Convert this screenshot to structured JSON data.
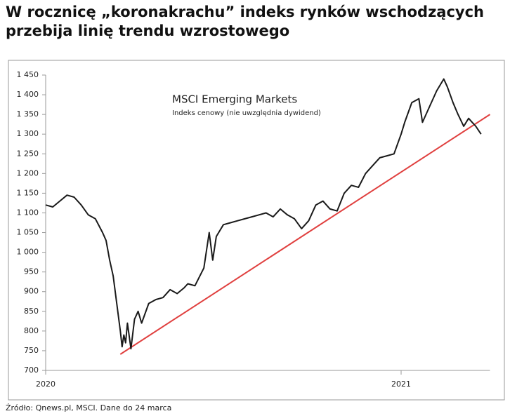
{
  "chart_data": {
    "type": "line",
    "title": "W rocznicę „koronakrachu” indeks rynków wschodzących przebija linię trendu wzrostowego",
    "annotation_title": "MSCI Emerging Markets",
    "annotation_subtitle": "Indeks cenowy (nie uwzględnia dywidend)",
    "source": "Źródło: Qnews.pl, MSCI. Dane do 24 marca",
    "x": [
      2020.0,
      2020.02,
      2020.04,
      2020.06,
      2020.08,
      2020.1,
      2020.12,
      2020.14,
      2020.16,
      2020.17,
      2020.18,
      2020.19,
      2020.2,
      2020.21,
      2020.215,
      2020.22,
      2020.225,
      2020.23,
      2020.24,
      2020.25,
      2020.26,
      2020.27,
      2020.29,
      2020.31,
      2020.33,
      2020.35,
      2020.37,
      2020.39,
      2020.4,
      2020.42,
      2020.445,
      2020.46,
      2020.47,
      2020.48,
      2020.5,
      2020.52,
      2020.54,
      2020.56,
      2020.58,
      2020.6,
      2020.62,
      2020.64,
      2020.66,
      2020.68,
      2020.7,
      2020.72,
      2020.74,
      2020.76,
      2020.78,
      2020.8,
      2020.82,
      2020.84,
      2020.86,
      2020.88,
      2020.9,
      2020.92,
      2020.94,
      2020.96,
      2020.98,
      2021.0,
      2021.01,
      2021.03,
      2021.05,
      2021.06,
      2021.08,
      2021.1,
      2021.12,
      2021.13,
      2021.146,
      2021.16,
      2021.176,
      2021.19,
      2021.2,
      2021.21,
      2021.225
    ],
    "series": [
      {
        "name": "MSCI Emerging Markets",
        "color": "#1a1a1a",
        "values": [
          1120,
          1115,
          1130,
          1145,
          1140,
          1120,
          1095,
          1085,
          1050,
          1030,
          980,
          940,
          870,
          800,
          760,
          790,
          770,
          820,
          755,
          830,
          850,
          820,
          870,
          880,
          885,
          905,
          895,
          910,
          920,
          915,
          960,
          1050,
          980,
          1040,
          1070,
          1075,
          1080,
          1085,
          1090,
          1095,
          1100,
          1090,
          1110,
          1095,
          1085,
          1060,
          1080,
          1120,
          1130,
          1110,
          1105,
          1150,
          1170,
          1165,
          1200,
          1220,
          1240,
          1245,
          1250,
          1300,
          1330,
          1380,
          1390,
          1330,
          1370,
          1410,
          1440,
          1420,
          1380,
          1350,
          1320,
          1340,
          1330,
          1320,
          1300
        ]
      }
    ],
    "trend_line": {
      "color": "#e0403f",
      "x": [
        2020.21,
        2021.25
      ],
      "values": [
        741,
        1350
      ]
    },
    "xlim": [
      2020,
      2021.25
    ],
    "xticks": [
      2020,
      2021
    ],
    "ylim": [
      700,
      1450
    ],
    "yticks": [
      700,
      750,
      800,
      850,
      900,
      950,
      {
        "value": 1000,
        "label": "1 000"
      },
      {
        "value": 1050,
        "label": "1 050"
      },
      {
        "value": 1100,
        "label": "1 100"
      },
      {
        "value": 1150,
        "label": "1 150"
      },
      {
        "value": 1200,
        "label": "1 200"
      },
      {
        "value": 1250,
        "label": "1 250"
      },
      {
        "value": 1300,
        "label": "1 300"
      },
      {
        "value": 1350,
        "label": "1 350"
      },
      {
        "value": 1400,
        "label": "1 400"
      },
      {
        "value": 1450,
        "label": "1 450"
      }
    ]
  }
}
